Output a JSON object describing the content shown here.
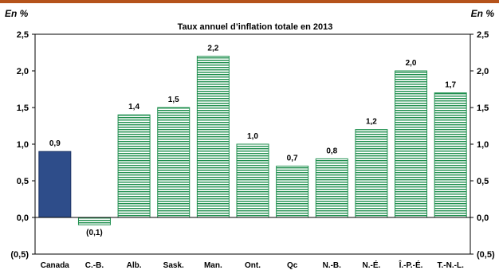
{
  "header": {
    "unit_left": "En %",
    "unit_right": "En %"
  },
  "chart_data": {
    "type": "bar",
    "title": "Taux annuel d’inflation totale en 2013",
    "xlabel": "",
    "ylabel": "En %",
    "ylim": [
      -0.5,
      2.5
    ],
    "yticks": [
      -0.5,
      0.0,
      0.5,
      1.0,
      1.5,
      2.0,
      2.5
    ],
    "ytick_labels": [
      "(0,5)",
      "0,0",
      "0,5",
      "1,0",
      "1,5",
      "2,0",
      "2,5"
    ],
    "categories": [
      "Canada",
      "C.-B.",
      "Alb.",
      "Sask.",
      "Man.",
      "Ont.",
      "Qc",
      "N.-B.",
      "N.-É.",
      "Î.-P.-É.",
      "T.-N.-L."
    ],
    "values": [
      0.9,
      -0.1,
      1.4,
      1.5,
      2.2,
      1.0,
      0.7,
      0.8,
      1.2,
      2.0,
      1.7
    ],
    "value_labels": [
      "0,9",
      "(0,1)",
      "1,4",
      "1,5",
      "2,2",
      "1,0",
      "0,7",
      "0,8",
      "1,2",
      "2,0",
      "1,7"
    ],
    "right_axis": true,
    "grid": false,
    "colors": {
      "highlight": "#2e4d8a",
      "pattern_green": "#1f8f4e",
      "top_rule": "#b5531b"
    }
  }
}
